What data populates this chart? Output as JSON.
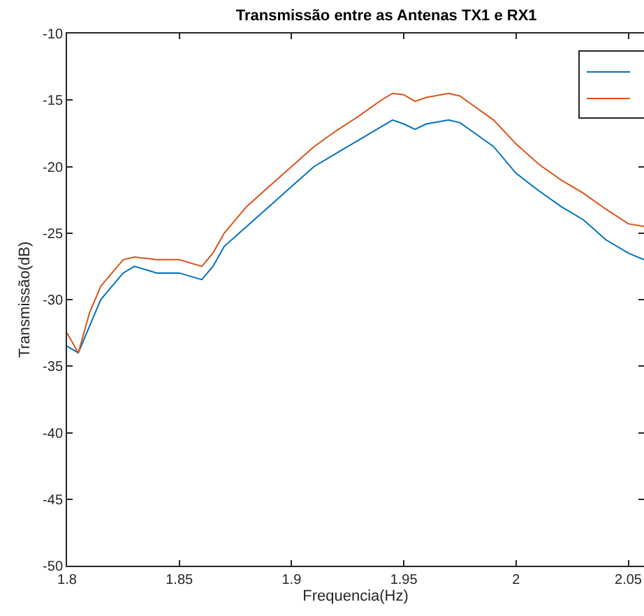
{
  "chart_data": {
    "type": "line",
    "title": "Transmissão entre as Antenas TX1 e RX1",
    "xlabel": "Frequencia(Hz)",
    "ylabel": "Transmissão(dB)",
    "x": [
      1.8,
      1.805,
      1.81,
      1.815,
      1.82,
      1.825,
      1.83,
      1.84,
      1.85,
      1.86,
      1.865,
      1.87,
      1.88,
      1.89,
      1.9,
      1.91,
      1.92,
      1.93,
      1.94,
      1.945,
      1.95,
      1.955,
      1.96,
      1.97,
      1.975,
      1.98,
      1.99,
      2.0,
      2.01,
      2.02,
      2.03,
      2.04,
      2.05,
      2.057
    ],
    "series": [
      {
        "color": "#0072bd",
        "values": [
          -33.5,
          -34,
          -32,
          -30,
          -29,
          -28,
          -27.5,
          -28,
          -28,
          -28.5,
          -27.5,
          -26,
          -24.5,
          -23,
          -21.5,
          -20,
          -19,
          -18,
          -17,
          -16.5,
          -16.8,
          -17.2,
          -16.8,
          -16.5,
          -16.7,
          -17.3,
          -18.5,
          -20.5,
          -21.8,
          -23,
          -24,
          -25.5,
          -26.5,
          -27
        ]
      },
      {
        "color": "#d95319",
        "values": [
          -32.5,
          -34,
          -31,
          -29,
          -28,
          -27,
          -26.8,
          -27,
          -27,
          -27.5,
          -26.5,
          -25,
          -23,
          -21.5,
          -20,
          -18.5,
          -17.3,
          -16.2,
          -15,
          -14.5,
          -14.6,
          -15.1,
          -14.8,
          -14.5,
          -14.7,
          -15.3,
          -16.5,
          -18.3,
          -19.8,
          -21,
          -22,
          -23.2,
          -24.3,
          -24.5
        ]
      }
    ],
    "xlim": [
      1.8,
      2.057
    ],
    "xticks": [
      1.8,
      1.85,
      1.9,
      1.95,
      2,
      2.05
    ],
    "ylim": [
      -50,
      -10
    ],
    "yticks": [
      -50,
      -45,
      -40,
      -35,
      -30,
      -25,
      -20,
      -15,
      -10
    ],
    "grid": false,
    "line_style": "solid",
    "marker": "none"
  }
}
